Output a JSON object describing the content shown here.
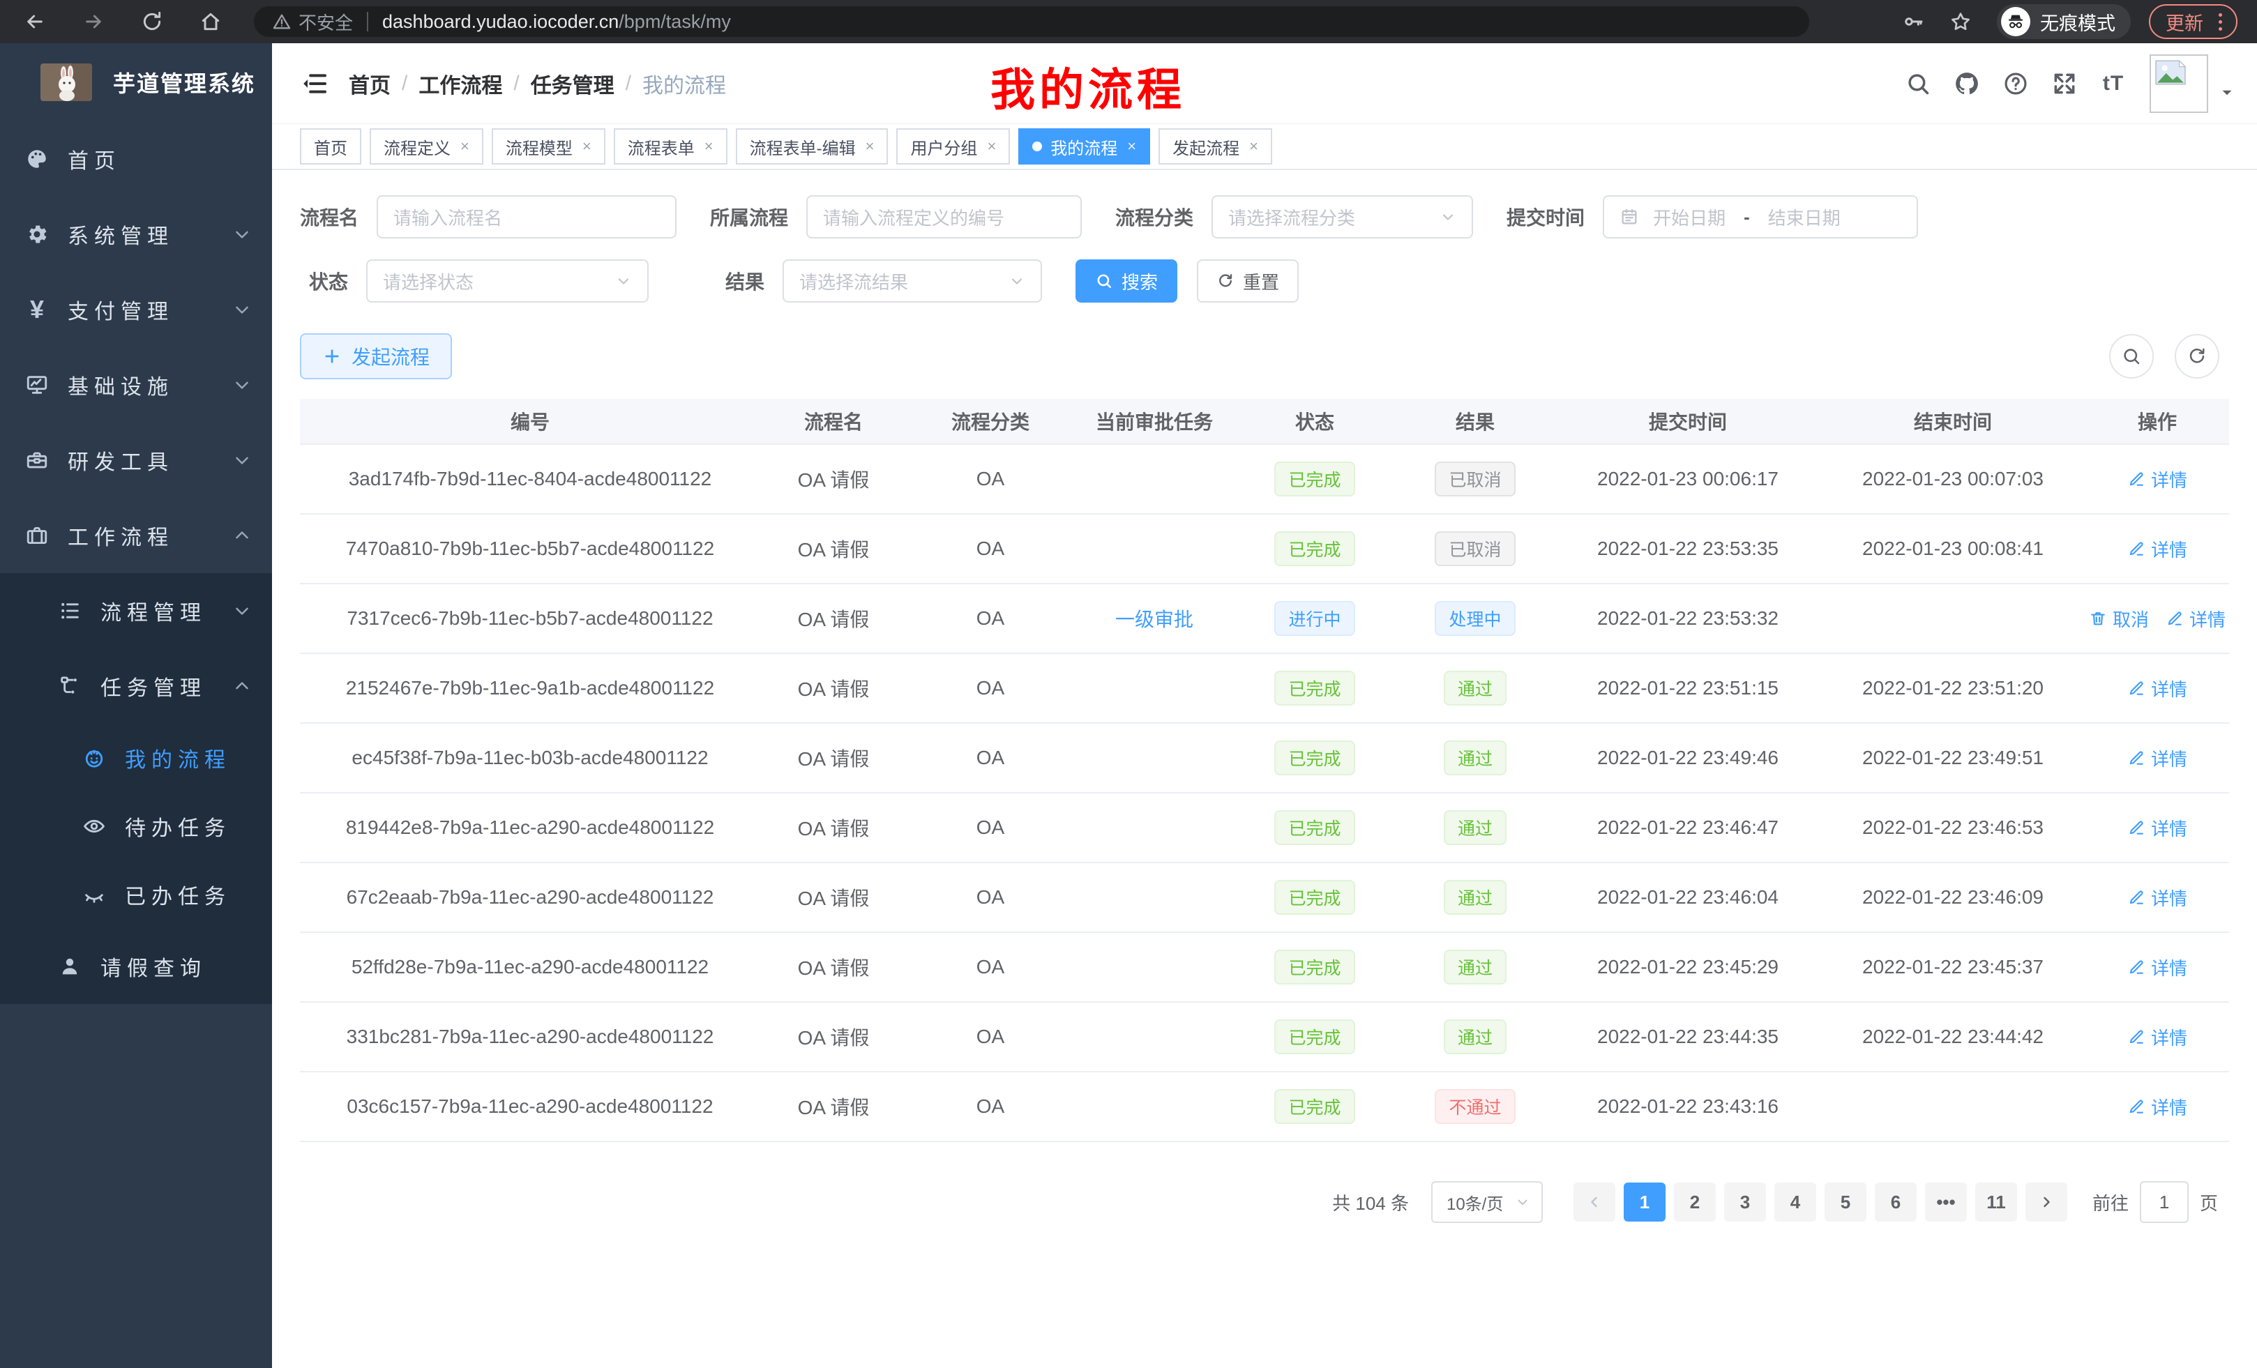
{
  "browser": {
    "security_label": "不安全",
    "url_host": "dashboard.yudao.iocoder.cn",
    "url_path": "/bpm/task/my",
    "incognito_label": "无痕模式",
    "update_label": "更新"
  },
  "colors": {
    "accent": "#409EFF",
    "success": "#67C23A",
    "danger": "#F56C6C",
    "info": "#909399",
    "sidebar_bg": "#2d3a4b",
    "submenu_bg": "#1f2d3d"
  },
  "sidebar": {
    "app_title": "芋道管理系统",
    "items": [
      {
        "slug": "home",
        "label": "首页",
        "icon": "dashboard-icon",
        "level": 1
      },
      {
        "slug": "system-management",
        "label": "系统管理",
        "icon": "gear-icon",
        "level": 1,
        "chevron": "down"
      },
      {
        "slug": "payment-management",
        "label": "支付管理",
        "icon": "yen-icon",
        "level": 1,
        "chevron": "down"
      },
      {
        "slug": "infrastructure",
        "label": "基础设施",
        "icon": "monitor-icon",
        "level": 1,
        "chevron": "down"
      },
      {
        "slug": "dev-tools",
        "label": "研发工具",
        "icon": "toolbox-icon",
        "level": 1,
        "chevron": "down"
      },
      {
        "slug": "workflow",
        "label": "工作流程",
        "icon": "briefcase-icon",
        "level": 1,
        "chevron": "up"
      },
      {
        "slug": "process-management",
        "label": "流程管理",
        "icon": "list-icon",
        "level": 2,
        "chevron": "down",
        "dark": true
      },
      {
        "slug": "task-management",
        "label": "任务管理",
        "icon": "tree-icon",
        "level": 2,
        "chevron": "up",
        "dark": true
      },
      {
        "slug": "my-process",
        "label": "我的流程",
        "icon": "face-icon",
        "level": 3,
        "active": true,
        "dark": true
      },
      {
        "slug": "todo-tasks",
        "label": "待办任务",
        "icon": "eye-icon",
        "level": 3,
        "dark": true
      },
      {
        "slug": "done-tasks",
        "label": "已办任务",
        "icon": "eye-closed-icon",
        "level": 3,
        "dark": true
      },
      {
        "slug": "leave-query",
        "label": "请假查询",
        "icon": "user-icon",
        "level": 2,
        "dark": true
      }
    ]
  },
  "header": {
    "breadcrumb": [
      "首页",
      "工作流程",
      "任务管理",
      "我的流程"
    ],
    "overlay_title": "我的流程"
  },
  "tabs": [
    {
      "slug": "home",
      "label": "首页",
      "closable": false
    },
    {
      "slug": "process-definition",
      "label": "流程定义",
      "closable": true
    },
    {
      "slug": "process-model",
      "label": "流程模型",
      "closable": true
    },
    {
      "slug": "process-form",
      "label": "流程表单",
      "closable": true
    },
    {
      "slug": "process-form-edit",
      "label": "流程表单-编辑",
      "closable": true
    },
    {
      "slug": "user-group",
      "label": "用户分组",
      "closable": true
    },
    {
      "slug": "my-process",
      "label": "我的流程",
      "closable": true,
      "active": true
    },
    {
      "slug": "start-process",
      "label": "发起流程",
      "closable": true
    }
  ],
  "filters": {
    "process_name": {
      "label": "流程名",
      "placeholder": "请输入流程名"
    },
    "process_def": {
      "label": "所属流程",
      "placeholder": "请输入流程定义的编号"
    },
    "category": {
      "label": "流程分类",
      "placeholder": "请选择流程分类"
    },
    "submit_time": {
      "label": "提交时间",
      "start_placeholder": "开始日期",
      "separator": "-",
      "end_placeholder": "结束日期"
    },
    "status": {
      "label": "状态",
      "placeholder": "请选择状态"
    },
    "result": {
      "label": "结果",
      "placeholder": "请选择流结果"
    },
    "search_label": "搜索",
    "reset_label": "重置"
  },
  "toolbar": {
    "create_label": "发起流程"
  },
  "table": {
    "columns": [
      "编号",
      "流程名",
      "流程分类",
      "当前审批任务",
      "状态",
      "结果",
      "提交时间",
      "结束时间",
      "操作"
    ],
    "rows": [
      {
        "id": "3ad174fb-7b9d-11ec-8404-acde48001122",
        "name": "OA 请假",
        "category": "OA",
        "task": "",
        "status": {
          "text": "已完成",
          "type": "success"
        },
        "result": {
          "text": "已取消",
          "type": "info"
        },
        "submit_time": "2022-01-23 00:06:17",
        "end_time": "2022-01-23 00:07:03",
        "actions": [
          {
            "label": "详情",
            "icon": "edit-icon"
          }
        ]
      },
      {
        "id": "7470a810-7b9b-11ec-b5b7-acde48001122",
        "name": "OA 请假",
        "category": "OA",
        "task": "",
        "status": {
          "text": "已完成",
          "type": "success"
        },
        "result": {
          "text": "已取消",
          "type": "info"
        },
        "submit_time": "2022-01-22 23:53:35",
        "end_time": "2022-01-23 00:08:41",
        "actions": [
          {
            "label": "详情",
            "icon": "edit-icon"
          }
        ]
      },
      {
        "id": "7317cec6-7b9b-11ec-b5b7-acde48001122",
        "name": "OA 请假",
        "category": "OA",
        "task": "一级审批",
        "status": {
          "text": "进行中",
          "type": "primary"
        },
        "result": {
          "text": "处理中",
          "type": "primary"
        },
        "submit_time": "2022-01-22 23:53:32",
        "end_time": "",
        "actions": [
          {
            "label": "取消",
            "icon": "trash-icon"
          },
          {
            "label": "详情",
            "icon": "edit-icon"
          }
        ]
      },
      {
        "id": "2152467e-7b9b-11ec-9a1b-acde48001122",
        "name": "OA 请假",
        "category": "OA",
        "task": "",
        "status": {
          "text": "已完成",
          "type": "success"
        },
        "result": {
          "text": "通过",
          "type": "success"
        },
        "submit_time": "2022-01-22 23:51:15",
        "end_time": "2022-01-22 23:51:20",
        "actions": [
          {
            "label": "详情",
            "icon": "edit-icon"
          }
        ]
      },
      {
        "id": "ec45f38f-7b9a-11ec-b03b-acde48001122",
        "name": "OA 请假",
        "category": "OA",
        "task": "",
        "status": {
          "text": "已完成",
          "type": "success"
        },
        "result": {
          "text": "通过",
          "type": "success"
        },
        "submit_time": "2022-01-22 23:49:46",
        "end_time": "2022-01-22 23:49:51",
        "actions": [
          {
            "label": "详情",
            "icon": "edit-icon"
          }
        ]
      },
      {
        "id": "819442e8-7b9a-11ec-a290-acde48001122",
        "name": "OA 请假",
        "category": "OA",
        "task": "",
        "status": {
          "text": "已完成",
          "type": "success"
        },
        "result": {
          "text": "通过",
          "type": "success"
        },
        "submit_time": "2022-01-22 23:46:47",
        "end_time": "2022-01-22 23:46:53",
        "actions": [
          {
            "label": "详情",
            "icon": "edit-icon"
          }
        ]
      },
      {
        "id": "67c2eaab-7b9a-11ec-a290-acde48001122",
        "name": "OA 请假",
        "category": "OA",
        "task": "",
        "status": {
          "text": "已完成",
          "type": "success"
        },
        "result": {
          "text": "通过",
          "type": "success"
        },
        "submit_time": "2022-01-22 23:46:04",
        "end_time": "2022-01-22 23:46:09",
        "actions": [
          {
            "label": "详情",
            "icon": "edit-icon"
          }
        ]
      },
      {
        "id": "52ffd28e-7b9a-11ec-a290-acde48001122",
        "name": "OA 请假",
        "category": "OA",
        "task": "",
        "status": {
          "text": "已完成",
          "type": "success"
        },
        "result": {
          "text": "通过",
          "type": "success"
        },
        "submit_time": "2022-01-22 23:45:29",
        "end_time": "2022-01-22 23:45:37",
        "actions": [
          {
            "label": "详情",
            "icon": "edit-icon"
          }
        ]
      },
      {
        "id": "331bc281-7b9a-11ec-a290-acde48001122",
        "name": "OA 请假",
        "category": "OA",
        "task": "",
        "status": {
          "text": "已完成",
          "type": "success"
        },
        "result": {
          "text": "通过",
          "type": "success"
        },
        "submit_time": "2022-01-22 23:44:35",
        "end_time": "2022-01-22 23:44:42",
        "actions": [
          {
            "label": "详情",
            "icon": "edit-icon"
          }
        ]
      },
      {
        "id": "03c6c157-7b9a-11ec-a290-acde48001122",
        "name": "OA 请假",
        "category": "OA",
        "task": "",
        "status": {
          "text": "已完成",
          "type": "success"
        },
        "result": {
          "text": "不通过",
          "type": "danger"
        },
        "submit_time": "2022-01-22 23:43:16",
        "end_time": "",
        "actions": [
          {
            "label": "详情",
            "icon": "edit-icon"
          }
        ]
      }
    ]
  },
  "pagination": {
    "total_text": "共 104 条",
    "page_size": "10条/页",
    "pages": [
      "1",
      "2",
      "3",
      "4",
      "5",
      "6",
      "•••",
      "11"
    ],
    "active_page": "1",
    "goto_label": "前往",
    "goto_value": "1",
    "goto_suffix": "页"
  }
}
